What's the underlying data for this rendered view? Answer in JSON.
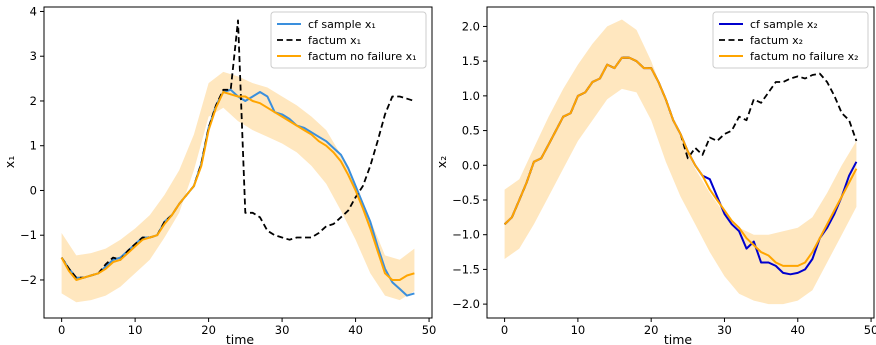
{
  "chart_data": [
    {
      "type": "line",
      "xlabel": "time",
      "ylabel": "x₁",
      "xlim": [
        -2.4,
        50.4
      ],
      "ylim": [
        -2.85,
        4.1
      ],
      "xticks": [
        0,
        10,
        20,
        30,
        40,
        50
      ],
      "yticks": [
        -2,
        -1,
        0,
        1,
        2,
        3,
        4
      ],
      "legend_position": "top-right",
      "band": {
        "color": "#ffe7bf",
        "x": [
          0,
          2,
          4,
          6,
          8,
          10,
          12,
          14,
          16,
          18,
          20,
          22,
          24,
          26,
          28,
          30,
          32,
          34,
          36,
          38,
          40,
          42,
          44,
          46,
          48
        ],
        "lower": [
          -2.3,
          -2.5,
          -2.45,
          -2.35,
          -2.15,
          -1.85,
          -1.55,
          -1.05,
          -0.5,
          0.45,
          1.65,
          1.85,
          1.55,
          1.35,
          1.2,
          1.05,
          0.85,
          0.55,
          0.15,
          -0.45,
          -1.1,
          -1.85,
          -2.35,
          -2.45,
          -2.25
        ],
        "upper": [
          -0.95,
          -1.45,
          -1.4,
          -1.3,
          -1.1,
          -0.85,
          -0.55,
          -0.1,
          0.45,
          1.25,
          2.4,
          2.65,
          2.55,
          2.4,
          2.3,
          2.1,
          1.9,
          1.65,
          1.35,
          0.8,
          0.15,
          -0.65,
          -1.45,
          -1.55,
          -1.3
        ]
      },
      "series": [
        {
          "name": "cf sample x₁",
          "color": "#3a8fdd",
          "style": "solid",
          "x": [
            0,
            1,
            2,
            3,
            4,
            5,
            6,
            7,
            8,
            9,
            10,
            11,
            12,
            13,
            14,
            15,
            16,
            17,
            18,
            19,
            20,
            21,
            22,
            23,
            24,
            25,
            26,
            27,
            28,
            29,
            30,
            31,
            32,
            33,
            34,
            35,
            36,
            37,
            38,
            39,
            40,
            41,
            42,
            43,
            44,
            45,
            46,
            47,
            48
          ],
          "y": [
            -1.5,
            -1.75,
            -1.95,
            -1.95,
            -1.9,
            -1.85,
            -1.7,
            -1.55,
            -1.5,
            -1.35,
            -1.2,
            -1.05,
            -1.05,
            -1.0,
            -0.7,
            -0.55,
            -0.3,
            -0.1,
            0.1,
            0.6,
            1.4,
            1.9,
            2.2,
            2.25,
            2.1,
            2.0,
            2.1,
            2.2,
            2.1,
            1.75,
            1.7,
            1.6,
            1.45,
            1.4,
            1.3,
            1.2,
            1.1,
            0.95,
            0.8,
            0.5,
            0.1,
            -0.3,
            -0.7,
            -1.25,
            -1.75,
            -2.05,
            -2.2,
            -2.35,
            -2.3
          ]
        },
        {
          "name": "factum x₁",
          "color": "#000000",
          "style": "dashed",
          "x": [
            0,
            1,
            2,
            3,
            4,
            5,
            6,
            7,
            8,
            9,
            10,
            11,
            12,
            13,
            14,
            15,
            16,
            17,
            18,
            19,
            20,
            21,
            22,
            23,
            24,
            25,
            26,
            27,
            28,
            29,
            30,
            31,
            32,
            33,
            34,
            35,
            36,
            37,
            38,
            39,
            40,
            41,
            42,
            43,
            44,
            45,
            46,
            47,
            48
          ],
          "y": [
            -1.5,
            -1.75,
            -1.95,
            -1.95,
            -1.9,
            -1.85,
            -1.65,
            -1.5,
            -1.55,
            -1.35,
            -1.2,
            -1.05,
            -1.05,
            -1.0,
            -0.7,
            -0.55,
            -0.3,
            -0.1,
            0.1,
            0.6,
            1.4,
            1.9,
            2.25,
            2.25,
            3.8,
            -0.5,
            -0.5,
            -0.6,
            -0.9,
            -1.0,
            -1.05,
            -1.1,
            -1.05,
            -1.05,
            -1.05,
            -0.95,
            -0.8,
            -0.75,
            -0.6,
            -0.45,
            -0.15,
            0.1,
            0.55,
            1.1,
            1.7,
            2.1,
            2.1,
            2.05,
            2.0
          ]
        },
        {
          "name": "factum no failure x₁",
          "color": "#ffa500",
          "style": "solid",
          "x": [
            0,
            1,
            2,
            3,
            4,
            5,
            6,
            7,
            8,
            9,
            10,
            11,
            12,
            13,
            14,
            15,
            16,
            17,
            18,
            19,
            20,
            21,
            22,
            23,
            24,
            25,
            26,
            27,
            28,
            29,
            30,
            31,
            32,
            33,
            34,
            35,
            36,
            37,
            38,
            39,
            40,
            41,
            42,
            43,
            44,
            45,
            46,
            47,
            48
          ],
          "y": [
            -1.5,
            -1.8,
            -2.0,
            -1.95,
            -1.9,
            -1.85,
            -1.75,
            -1.6,
            -1.55,
            -1.4,
            -1.25,
            -1.1,
            -1.05,
            -1.0,
            -0.75,
            -0.55,
            -0.3,
            -0.1,
            0.1,
            0.55,
            1.35,
            1.85,
            2.2,
            2.15,
            2.1,
            2.1,
            2.0,
            1.95,
            1.85,
            1.75,
            1.65,
            1.55,
            1.45,
            1.35,
            1.25,
            1.1,
            1.0,
            0.85,
            0.65,
            0.35,
            0.0,
            -0.4,
            -0.85,
            -1.35,
            -1.85,
            -2.0,
            -2.0,
            -1.9,
            -1.85
          ]
        }
      ]
    },
    {
      "type": "line",
      "xlabel": "time",
      "ylabel": "x₂",
      "xlim": [
        -2.4,
        50.4
      ],
      "ylim": [
        -2.2,
        2.28
      ],
      "xticks": [
        0,
        10,
        20,
        30,
        40,
        50
      ],
      "yticks": [
        -2.0,
        -1.5,
        -1.0,
        -0.5,
        0.0,
        0.5,
        1.0,
        1.5,
        2.0
      ],
      "ytick_labels": [
        "−2.0",
        "−1.5",
        "−1.0",
        "−0.5",
        "0.0",
        "0.5",
        "1.0",
        "1.5",
        "2.0"
      ],
      "legend_position": "top-right",
      "band": {
        "color": "#ffe7bf",
        "x": [
          0,
          2,
          4,
          6,
          8,
          10,
          12,
          14,
          16,
          18,
          20,
          22,
          24,
          26,
          28,
          30,
          32,
          34,
          36,
          38,
          40,
          42,
          44,
          46,
          48
        ],
        "lower": [
          -1.35,
          -1.2,
          -0.85,
          -0.45,
          -0.05,
          0.35,
          0.65,
          0.95,
          1.1,
          1.05,
          0.65,
          0.05,
          -0.45,
          -0.85,
          -1.25,
          -1.6,
          -1.85,
          -1.95,
          -2.0,
          -2.0,
          -1.95,
          -1.8,
          -1.4,
          -1.0,
          -0.6
        ],
        "upper": [
          -0.35,
          -0.2,
          0.25,
          0.7,
          1.1,
          1.45,
          1.75,
          2.0,
          2.1,
          1.95,
          1.5,
          0.95,
          0.4,
          -0.05,
          -0.4,
          -0.7,
          -0.9,
          -1.0,
          -1.0,
          -0.95,
          -0.9,
          -0.75,
          -0.4,
          0.0,
          0.35
        ]
      },
      "series": [
        {
          "name": "cf sample x₂",
          "color": "#0000cd",
          "style": "solid",
          "x": [
            0,
            1,
            2,
            3,
            4,
            5,
            6,
            7,
            8,
            9,
            10,
            11,
            12,
            13,
            14,
            15,
            16,
            17,
            18,
            19,
            20,
            21,
            22,
            23,
            24,
            25,
            26,
            27,
            28,
            29,
            30,
            31,
            32,
            33,
            34,
            35,
            36,
            37,
            38,
            39,
            40,
            41,
            42,
            43,
            44,
            45,
            46,
            47,
            48
          ],
          "y": [
            -0.85,
            -0.75,
            -0.5,
            -0.25,
            0.05,
            0.1,
            0.3,
            0.5,
            0.7,
            0.75,
            1.0,
            1.05,
            1.2,
            1.25,
            1.45,
            1.4,
            1.55,
            1.55,
            1.5,
            1.4,
            1.4,
            1.2,
            0.95,
            0.65,
            0.45,
            0.2,
            0.0,
            -0.15,
            -0.2,
            -0.45,
            -0.7,
            -0.85,
            -0.95,
            -1.2,
            -1.1,
            -1.4,
            -1.4,
            -1.45,
            -1.55,
            -1.57,
            -1.55,
            -1.5,
            -1.35,
            -1.05,
            -0.9,
            -0.7,
            -0.45,
            -0.15,
            0.05
          ]
        },
        {
          "name": "factum x₂",
          "color": "#000000",
          "style": "dashed",
          "x": [
            0,
            1,
            2,
            3,
            4,
            5,
            6,
            7,
            8,
            9,
            10,
            11,
            12,
            13,
            14,
            15,
            16,
            17,
            18,
            19,
            20,
            21,
            22,
            23,
            24,
            25,
            26,
            27,
            28,
            29,
            30,
            31,
            32,
            33,
            34,
            35,
            36,
            37,
            38,
            39,
            40,
            41,
            42,
            43,
            44,
            45,
            46,
            47,
            48
          ],
          "y": [
            -0.85,
            -0.75,
            -0.5,
            -0.25,
            0.05,
            0.1,
            0.3,
            0.5,
            0.7,
            0.75,
            1.0,
            1.05,
            1.2,
            1.25,
            1.45,
            1.4,
            1.55,
            1.55,
            1.5,
            1.4,
            1.4,
            1.2,
            0.95,
            0.65,
            0.45,
            0.1,
            0.25,
            0.15,
            0.4,
            0.35,
            0.45,
            0.5,
            0.7,
            0.65,
            0.95,
            0.9,
            1.05,
            1.2,
            1.2,
            1.25,
            1.28,
            1.25,
            1.3,
            1.32,
            1.2,
            1.0,
            0.75,
            0.65,
            0.35
          ]
        },
        {
          "name": "factum no failure x₂",
          "color": "#ffa500",
          "style": "solid",
          "x": [
            0,
            1,
            2,
            3,
            4,
            5,
            6,
            7,
            8,
            9,
            10,
            11,
            12,
            13,
            14,
            15,
            16,
            17,
            18,
            19,
            20,
            21,
            22,
            23,
            24,
            25,
            26,
            27,
            28,
            29,
            30,
            31,
            32,
            33,
            34,
            35,
            36,
            37,
            38,
            39,
            40,
            41,
            42,
            43,
            44,
            45,
            46,
            47,
            48
          ],
          "y": [
            -0.85,
            -0.75,
            -0.5,
            -0.25,
            0.05,
            0.1,
            0.3,
            0.5,
            0.7,
            0.75,
            1.0,
            1.05,
            1.2,
            1.25,
            1.45,
            1.4,
            1.55,
            1.55,
            1.5,
            1.4,
            1.4,
            1.2,
            0.95,
            0.65,
            0.45,
            0.2,
            0.0,
            -0.15,
            -0.35,
            -0.5,
            -0.65,
            -0.8,
            -0.9,
            -1.05,
            -1.15,
            -1.25,
            -1.3,
            -1.4,
            -1.45,
            -1.45,
            -1.45,
            -1.4,
            -1.25,
            -1.05,
            -0.85,
            -0.65,
            -0.45,
            -0.25,
            -0.05
          ]
        }
      ]
    }
  ]
}
